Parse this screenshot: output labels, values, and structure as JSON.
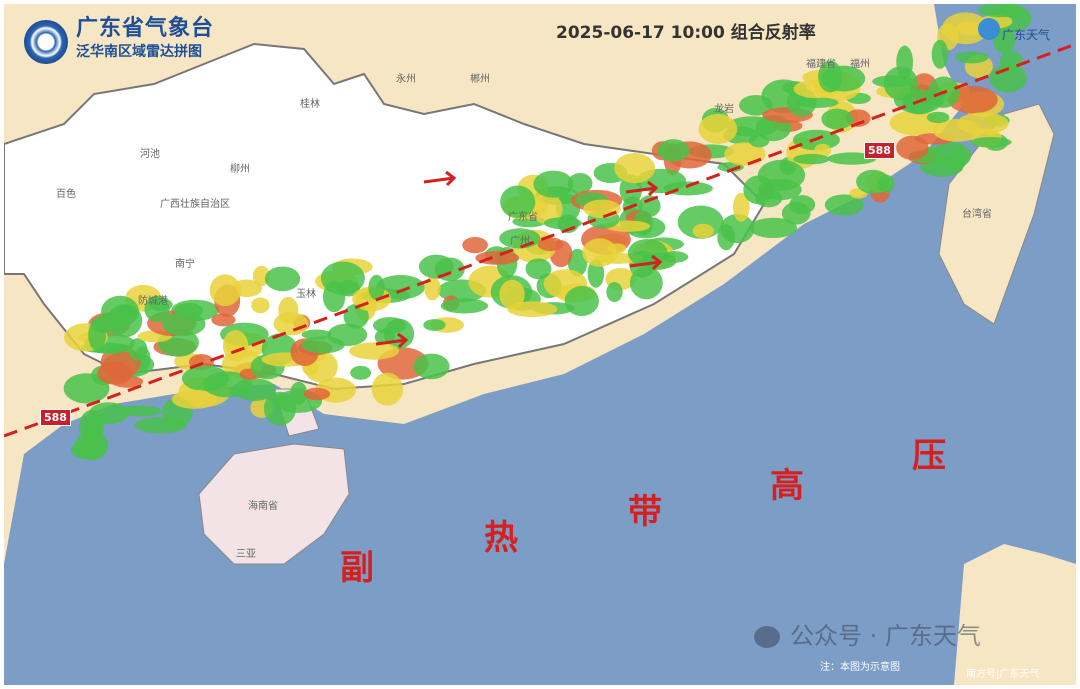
{
  "header": {
    "org": "广东省气象台",
    "subtitle": "泛华南区域雷达拼图",
    "timestamp_title": "2025-06-17 10:00 组合反射率",
    "brand": "广东天气"
  },
  "overlay": {
    "isobar_label": "588",
    "subtropical_high": [
      "副",
      "热",
      "带",
      "高",
      "压"
    ],
    "line_color": "#d62020"
  },
  "places": {
    "guangxi": "广西壮族自治区",
    "guangdong": "广东省",
    "hainan": "海南省",
    "taiwan": "台湾省",
    "fujian": "福建省",
    "nanning": "南宁",
    "guangzhou": "广州",
    "sanya": "三亚",
    "guilin": "桂林",
    "liuzhou": "柳州",
    "yulin": "玉林",
    "yongzhou": "永州",
    "chenzhou": "郴州",
    "longyan": "龙岩",
    "fuzhou": "福州",
    "hechi": "河池",
    "baise": "百色",
    "fangchenggang": "防城港"
  },
  "watermarks": {
    "wechat": "公众号 · 广东天气",
    "corner": "南方号|广东天气",
    "note": "注：本图为示意图"
  },
  "colors": {
    "ocean": "#7c9dc6",
    "land": "#f7e6c4",
    "province": "#ffffff",
    "hainan": "#f3e3e6"
  }
}
